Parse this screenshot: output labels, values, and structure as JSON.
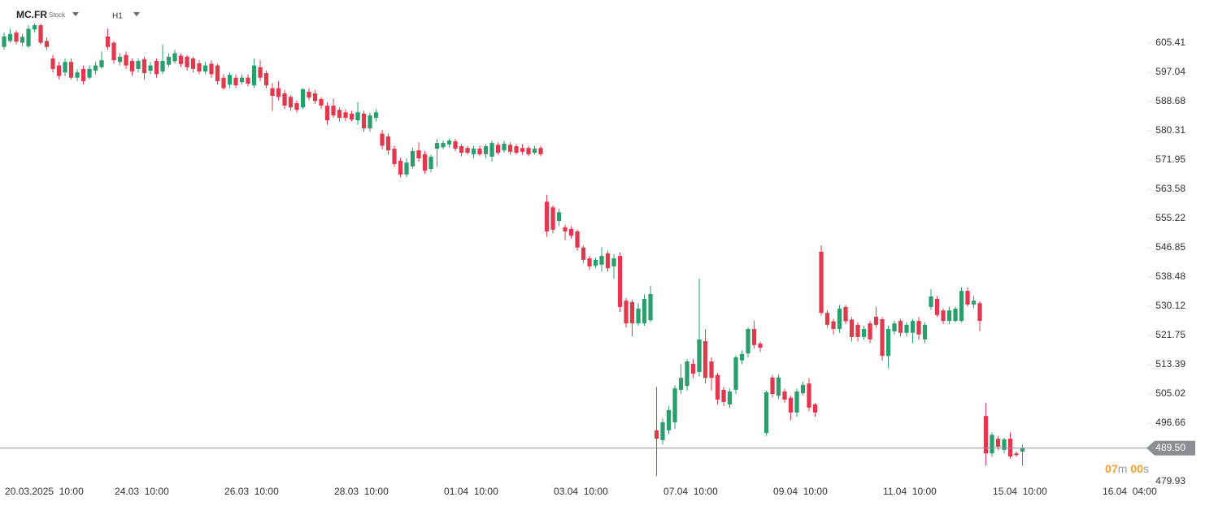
{
  "chart_data": {
    "type": "candlestick",
    "symbol": "MC.FR",
    "instrument_type": "Stock",
    "interval": "H1",
    "up_color": "#2b9e6e",
    "down_color": "#e2384d",
    "xlim": [
      -0.67,
      187.33
    ],
    "ylim": [
      479.45,
      617.73
    ],
    "xticks": [
      {
        "value": 0,
        "label": "20.03.2025  10:00"
      },
      {
        "value": 18,
        "label": "24.03  10:00"
      },
      {
        "value": 36,
        "label": "26.03  10:00"
      },
      {
        "value": 54,
        "label": "28.03  10:00"
      },
      {
        "value": 72,
        "label": "01.04  10:00"
      },
      {
        "value": 90,
        "label": "03.04  10:00"
      },
      {
        "value": 108,
        "label": "07.04  10:00"
      },
      {
        "value": 126,
        "label": "09.04  10:00"
      },
      {
        "value": 144,
        "label": "11.04  10:00"
      },
      {
        "value": 162,
        "label": "15.04  10:00"
      },
      {
        "value": 180,
        "label": "16.04  04:00"
      }
    ],
    "yticks": [
      605.41,
      597.04,
      588.68,
      580.31,
      571.95,
      563.58,
      555.22,
      546.85,
      538.48,
      530.12,
      521.75,
      513.39,
      505.02,
      496.66,
      479.93
    ],
    "current_price": {
      "value": 489.5,
      "label": "489.50"
    },
    "countdown": {
      "minutes": "07",
      "minutes_unit": "m",
      "seconds": "00",
      "seconds_unit": "s"
    },
    "ohlc": [
      [
        604.3,
        608.5,
        603.5,
        607.3
      ],
      [
        606.0,
        609.5,
        605.5,
        608.0
      ],
      [
        608.4,
        609,
        605,
        605.8
      ],
      [
        605.5,
        608,
        604.5,
        607.2
      ],
      [
        604.5,
        610.5,
        604,
        609.5
      ],
      [
        609.3,
        611,
        608.5,
        610.5
      ],
      [
        610.5,
        611,
        605,
        605.5
      ],
      [
        606,
        607,
        603.5,
        604.3
      ],
      [
        601,
        602,
        597,
        598
      ],
      [
        599,
        600,
        595,
        596
      ],
      [
        597,
        601,
        596,
        600
      ],
      [
        600,
        601,
        595,
        595.5
      ],
      [
        595.5,
        598,
        594.5,
        597
      ],
      [
        598,
        599,
        593.5,
        594.5
      ],
      [
        595.5,
        599,
        595,
        598
      ],
      [
        597.5,
        600,
        596.5,
        599
      ],
      [
        598.5,
        603,
        598,
        600.5
      ],
      [
        607.3,
        609.5,
        603.5,
        604.3
      ],
      [
        605.5,
        606,
        599.5,
        600.5
      ],
      [
        600,
        602.5,
        599,
        601.5
      ],
      [
        602,
        603,
        598,
        599
      ],
      [
        600.3,
        601,
        596,
        597.3
      ],
      [
        598,
        601,
        597,
        600.3
      ],
      [
        600.8,
        601.5,
        595,
        596.8
      ],
      [
        597.5,
        600,
        596.5,
        599
      ],
      [
        600.3,
        601,
        595.5,
        596.5
      ],
      [
        597.3,
        605,
        596.5,
        600.3
      ],
      [
        599.2,
        602.5,
        598.5,
        601.5
      ],
      [
        600.2,
        603.5,
        599.5,
        602.5
      ],
      [
        601.8,
        602.5,
        598.5,
        599.4
      ],
      [
        601.5,
        602,
        597.5,
        598.5
      ],
      [
        601,
        601.5,
        597,
        598
      ],
      [
        599.6,
        600.5,
        596.5,
        597.3
      ],
      [
        597.3,
        600,
        596.5,
        599
      ],
      [
        599.5,
        600.5,
        595.5,
        596.5
      ],
      [
        599,
        599.5,
        593.5,
        594.5
      ],
      [
        595.5,
        596.5,
        592,
        592.5
      ],
      [
        593.5,
        597,
        592.5,
        596.3
      ],
      [
        595.5,
        596.5,
        592.5,
        593.3
      ],
      [
        594.2,
        596.5,
        593.5,
        595.5
      ],
      [
        595.5,
        596.5,
        593,
        593.8
      ],
      [
        593.3,
        601,
        592.5,
        599
      ],
      [
        598.5,
        600.5,
        594.5,
        595.5
      ],
      [
        596.8,
        597.5,
        592.5,
        593.3
      ],
      [
        592.5,
        594,
        586,
        590.3
      ],
      [
        592.5,
        594.5,
        589,
        590
      ],
      [
        591,
        592,
        586.5,
        587.5
      ],
      [
        590,
        590.5,
        586,
        587
      ],
      [
        588.2,
        589,
        585.5,
        586.3
      ],
      [
        587,
        592.5,
        586.5,
        592.2
      ],
      [
        591.5,
        592.5,
        589,
        589.8
      ],
      [
        591,
        592,
        588,
        588.8
      ],
      [
        589.4,
        590,
        586.5,
        587.5
      ],
      [
        587.5,
        588.5,
        582,
        583.3
      ],
      [
        587.5,
        589.5,
        584,
        584.7
      ],
      [
        586.3,
        587,
        583,
        584
      ],
      [
        585.6,
        586.5,
        583,
        584
      ],
      [
        585.2,
        586,
        583,
        583.5
      ],
      [
        583.3,
        588.5,
        582,
        585.6
      ],
      [
        585.2,
        586,
        580,
        581
      ],
      [
        581,
        585.5,
        580,
        584.7
      ],
      [
        584,
        586.5,
        583,
        585.6
      ],
      [
        579.5,
        580.5,
        575,
        576
      ],
      [
        578.7,
        579.5,
        573.5,
        574.7
      ],
      [
        575.2,
        576,
        570,
        570.8
      ],
      [
        571.7,
        572.5,
        567,
        567.8
      ],
      [
        567.8,
        572.5,
        567,
        571.2
      ],
      [
        570.1,
        575.5,
        569.5,
        574.5
      ],
      [
        574.7,
        577,
        571.5,
        572.4
      ],
      [
        573.6,
        574.5,
        568,
        568.9
      ],
      [
        569.4,
        573.5,
        568.5,
        572.9
      ],
      [
        575.2,
        578,
        570,
        576.8
      ],
      [
        575.6,
        577.5,
        575,
        576.8
      ],
      [
        576.4,
        578,
        575.5,
        577.5
      ],
      [
        577.3,
        578,
        574.5,
        575.2
      ],
      [
        575.9,
        576.5,
        573,
        574
      ],
      [
        575.4,
        576,
        573.5,
        574
      ],
      [
        573.6,
        576,
        572.5,
        575.2
      ],
      [
        575.2,
        576,
        573,
        573.6
      ],
      [
        573.6,
        576.5,
        572.5,
        575.9
      ],
      [
        572.9,
        577.5,
        571.5,
        576.8
      ],
      [
        576.3,
        577,
        573.5,
        574
      ],
      [
        574.7,
        577.5,
        574,
        576.6
      ],
      [
        576.3,
        577,
        573.5,
        574.3
      ],
      [
        575.9,
        576.5,
        573.5,
        574
      ],
      [
        575.4,
        576.5,
        573.5,
        574.3
      ],
      [
        575.4,
        576,
        573,
        573.6
      ],
      [
        574,
        576,
        573.5,
        575.2
      ],
      [
        575.4,
        576,
        573,
        573.6
      ],
      [
        560,
        562,
        550,
        551.5
      ],
      [
        558.4,
        559,
        551,
        552
      ],
      [
        554.5,
        558,
        553,
        557
      ],
      [
        552.7,
        553.5,
        549,
        551.5
      ],
      [
        552.2,
        553,
        549.5,
        550.3
      ],
      [
        551.5,
        552,
        546,
        546.9
      ],
      [
        546.9,
        547.5,
        542.5,
        543.4
      ],
      [
        543.8,
        544.5,
        540.5,
        541.5
      ],
      [
        541.7,
        544,
        541,
        543.4
      ],
      [
        542,
        547,
        540,
        544.5
      ],
      [
        545.2,
        546,
        540,
        541
      ],
      [
        541.5,
        545,
        538,
        543.8
      ],
      [
        544.5,
        545.5,
        528.5,
        529.9
      ],
      [
        531.7,
        532.5,
        524,
        525.2
      ],
      [
        531.3,
        532,
        521.5,
        525.2
      ],
      [
        525.2,
        531,
        524.5,
        529.4
      ],
      [
        525.2,
        533.5,
        524.5,
        532.2
      ],
      [
        526.1,
        536,
        525.5,
        533.6
      ],
      [
        494.6,
        507,
        481.5,
        492.2
      ],
      [
        491.8,
        498,
        490.5,
        496.9
      ],
      [
        494.6,
        501.5,
        493.5,
        500.4
      ],
      [
        496.9,
        507.5,
        495,
        506.6
      ],
      [
        506.2,
        513.5,
        505,
        509.6
      ],
      [
        507.3,
        515,
        506,
        514.3
      ],
      [
        513.6,
        515,
        509.5,
        510.8
      ],
      [
        511.3,
        538,
        510,
        520.6
      ],
      [
        520.1,
        523.5,
        508,
        509.6
      ],
      [
        514.3,
        515.5,
        506,
        509.6
      ],
      [
        510.4,
        511,
        502,
        503.4
      ],
      [
        506.2,
        507,
        501.5,
        502.7
      ],
      [
        502,
        506.5,
        501,
        505.7
      ],
      [
        506.2,
        516,
        505,
        515.5
      ],
      [
        514.6,
        517.5,
        513.5,
        516.4
      ],
      [
        516.6,
        524,
        515.5,
        523.6
      ],
      [
        523.6,
        526,
        518,
        519
      ],
      [
        519.4,
        520,
        517,
        518.2
      ],
      [
        493.8,
        506,
        493,
        505.5
      ],
      [
        509.7,
        510.5,
        504,
        505
      ],
      [
        504.5,
        510.5,
        503.5,
        509.7
      ],
      [
        505.7,
        506.5,
        502.5,
        503.4
      ],
      [
        503.9,
        504.5,
        497.5,
        499.7
      ],
      [
        499.7,
        506.5,
        498.5,
        505.7
      ],
      [
        505.2,
        508.5,
        504.5,
        507.6
      ],
      [
        508,
        509.5,
        500,
        501.1
      ],
      [
        502,
        502.5,
        498.5,
        499.7
      ],
      [
        545.7,
        547.5,
        527.5,
        528.2
      ],
      [
        528.2,
        529,
        524,
        524.8
      ],
      [
        525.8,
        526.5,
        522,
        523.6
      ],
      [
        523.6,
        530.5,
        522.5,
        529.4
      ],
      [
        529.9,
        530.5,
        525,
        525.8
      ],
      [
        526.3,
        527,
        520,
        521.3
      ],
      [
        524.8,
        525.5,
        520,
        521.3
      ],
      [
        521.3,
        524.5,
        520.5,
        523.6
      ],
      [
        525.2,
        526,
        519.5,
        520.6
      ],
      [
        527.1,
        530,
        524,
        524.8
      ],
      [
        526.4,
        527,
        514.5,
        515.9
      ],
      [
        515.9,
        524.5,
        512.5,
        523.6
      ],
      [
        522.9,
        526,
        522,
        525.2
      ],
      [
        525.9,
        526.5,
        521.5,
        522.5
      ],
      [
        522.5,
        525.5,
        521.5,
        524.8
      ],
      [
        522.5,
        526.5,
        519.5,
        525.9
      ],
      [
        525.9,
        527,
        520.5,
        522
      ],
      [
        520.6,
        525.5,
        519.5,
        524.8
      ],
      [
        529.9,
        535,
        529,
        532.9
      ],
      [
        532.2,
        533,
        527,
        527.6
      ],
      [
        528.9,
        529.5,
        525,
        525.9
      ],
      [
        525.9,
        530,
        525,
        528.9
      ],
      [
        525.9,
        530,
        525.5,
        529.4
      ],
      [
        525.9,
        535.5,
        525.5,
        534.5
      ],
      [
        534.5,
        535.5,
        530,
        530.6
      ],
      [
        530.6,
        533,
        529.5,
        531.7
      ],
      [
        531,
        531.5,
        523,
        525.9
      ],
      [
        498.7,
        502.5,
        484.5,
        488
      ],
      [
        488,
        494,
        487,
        493.3
      ],
      [
        492.2,
        493,
        489,
        489.9
      ],
      [
        489,
        492.5,
        488,
        492
      ],
      [
        492.2,
        494,
        486.5,
        487.1
      ],
      [
        488,
        488.5,
        487,
        487.5
      ],
      [
        488.5,
        490.5,
        484.5,
        489.5
      ]
    ]
  }
}
